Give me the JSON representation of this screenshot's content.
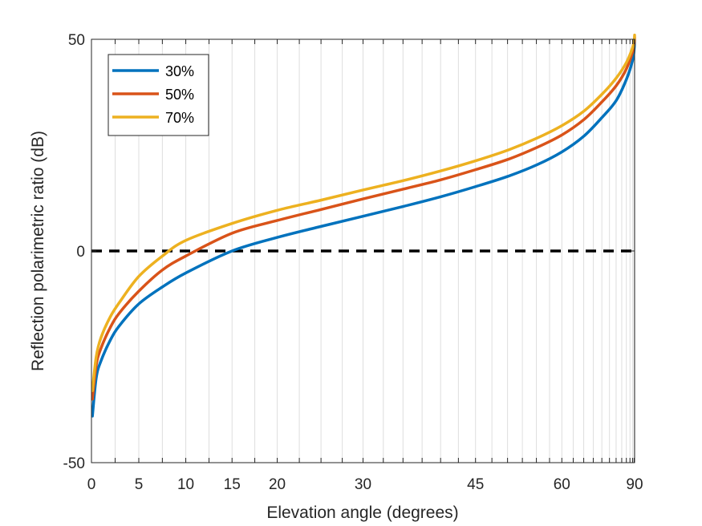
{
  "chart_data": {
    "type": "line",
    "title": "",
    "xlabel": "Elevation angle (degrees)",
    "ylabel": "Reflection polarimetric ratio (dB)",
    "xscale": "sin(elevation)",
    "xlim": [
      0,
      90
    ],
    "ylim": [
      -50,
      50
    ],
    "xticks": [
      0,
      5,
      10,
      15,
      20,
      30,
      45,
      60,
      90
    ],
    "xtick_labels": [
      "0",
      "5",
      "10",
      "15",
      "20",
      "30",
      "45",
      "60",
      "90"
    ],
    "yticks": [
      -50,
      0,
      50
    ],
    "ytick_labels": [
      "-50",
      "0",
      "50"
    ],
    "vertical_gridlines_every_deg": 2.5,
    "reference_line": {
      "y": 0,
      "style": "dashed",
      "color": "#000000"
    },
    "legend_position": "top-left",
    "x": [
      0.1,
      0.5,
      1,
      2,
      3,
      5,
      7.5,
      10,
      15,
      20,
      25,
      30,
      35,
      40,
      45,
      50,
      55,
      60,
      65,
      70,
      75,
      80,
      85,
      88,
      90
    ],
    "series": [
      {
        "name": "30%",
        "color": "#0072BD",
        "values": [
          -39,
          -30,
          -26,
          -21,
          -17.5,
          -12.5,
          -8.5,
          -5.2,
          0,
          3.2,
          5.8,
          8.2,
          10.5,
          12.8,
          15.2,
          17.6,
          20.3,
          23.4,
          27.1,
          31.5,
          35.5,
          40.5,
          45,
          48,
          50
        ]
      },
      {
        "name": "50%",
        "color": "#D95319",
        "values": [
          -35,
          -27,
          -23,
          -18,
          -14.5,
          -9.5,
          -4.5,
          -1.2,
          4.2,
          7.2,
          9.8,
          12.3,
          14.6,
          16.8,
          19.2,
          21.6,
          24.4,
          27.4,
          31,
          35.2,
          39,
          43,
          47,
          49.2,
          50.5
        ]
      },
      {
        "name": "70%",
        "color": "#EDB120",
        "values": [
          -33,
          -25,
          -20.5,
          -15.5,
          -12,
          -6,
          -1.2,
          2.5,
          6.5,
          9.6,
          12,
          14.4,
          16.6,
          18.9,
          21.3,
          23.8,
          26.6,
          29.6,
          33,
          37,
          40.8,
          44.5,
          48,
          50,
          51
        ]
      }
    ]
  }
}
